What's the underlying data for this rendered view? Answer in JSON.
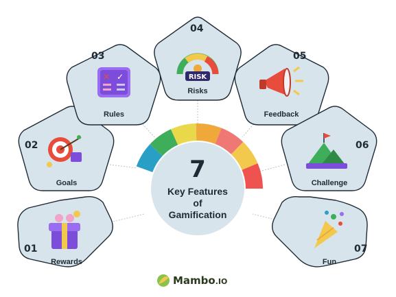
{
  "diagram": {
    "center": {
      "number": "7",
      "line1": "Key Features",
      "line2": "of",
      "line3": "Gamification"
    },
    "features": [
      {
        "num": "01",
        "label": "Rewards",
        "icon": "gift-box-icon"
      },
      {
        "num": "02",
        "label": "Goals",
        "icon": "target-icon"
      },
      {
        "num": "03",
        "label": "Rules",
        "icon": "checklist-icon"
      },
      {
        "num": "04",
        "label": "Risks",
        "icon": "risk-gauge-icon"
      },
      {
        "num": "05",
        "label": "Feedback",
        "icon": "megaphone-icon"
      },
      {
        "num": "06",
        "label": "Challenge",
        "icon": "mountain-flag-icon"
      },
      {
        "num": "07",
        "label": "Fun",
        "icon": "party-popper-icon"
      }
    ],
    "arc_colors": [
      "#2a9fc6",
      "#3fae5a",
      "#e9d84a",
      "#f0a83a",
      "#ef7774",
      "#f2c94c",
      "#ef5350"
    ],
    "pentagon_fill": "#d7e4ec",
    "logo": {
      "brand": "Mambo",
      "suffix": ".IO"
    }
  }
}
